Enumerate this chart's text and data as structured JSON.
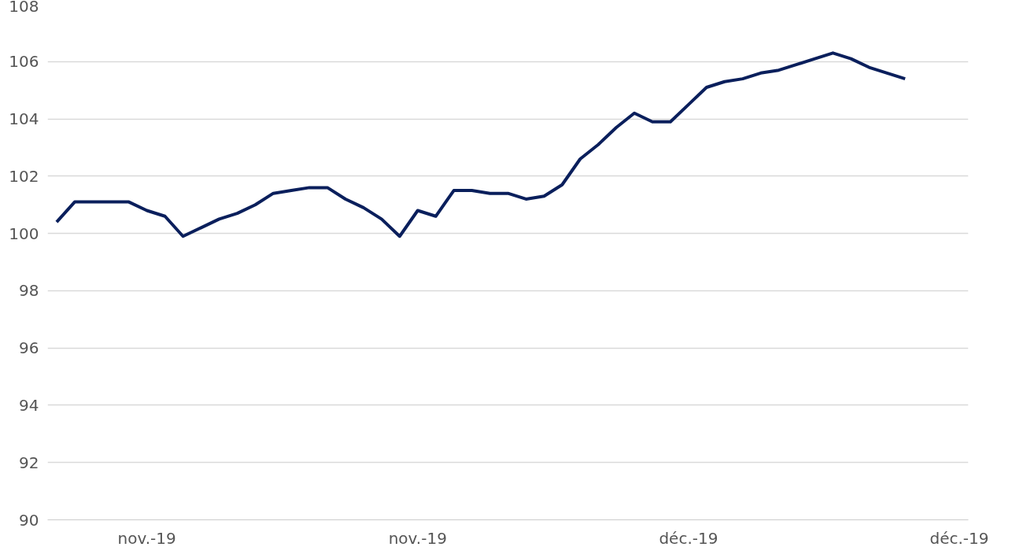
{
  "chart_data": {
    "type": "line",
    "categories": [
      null,
      null,
      null,
      null,
      null,
      "nov.-19",
      null,
      null,
      null,
      null,
      null,
      null,
      null,
      null,
      null,
      null,
      null,
      null,
      null,
      null,
      "nov.-19",
      null,
      null,
      null,
      null,
      null,
      null,
      null,
      null,
      null,
      null,
      null,
      null,
      null,
      null,
      "déc.-19",
      null,
      null,
      null,
      null,
      null,
      null,
      null,
      null,
      null,
      null,
      null,
      null,
      null,
      null,
      "déc.-19"
    ],
    "series": [
      {
        "color": "#0a1f5c",
        "values": [
          100.4,
          101.1,
          101.1,
          101.1,
          101.1,
          100.8,
          100.6,
          99.9,
          100.2,
          100.5,
          100.7,
          101.0,
          101.4,
          101.5,
          101.6,
          101.6,
          101.2,
          100.9,
          100.5,
          99.9,
          100.8,
          100.6,
          101.5,
          101.5,
          101.4,
          101.4,
          101.2,
          101.3,
          101.7,
          102.6,
          103.1,
          103.7,
          104.2,
          103.9,
          103.9,
          104.5,
          105.1,
          105.3,
          105.4,
          105.6,
          105.7,
          105.9,
          106.1,
          106.3,
          106.1,
          105.8,
          105.6,
          105.4,
          null,
          null,
          null
        ]
      }
    ],
    "ylim": [
      90,
      108
    ],
    "yticks": [
      90,
      92,
      94,
      96,
      98,
      100,
      102,
      104,
      106,
      108
    ],
    "grid": "y",
    "line_style": "solid"
  }
}
